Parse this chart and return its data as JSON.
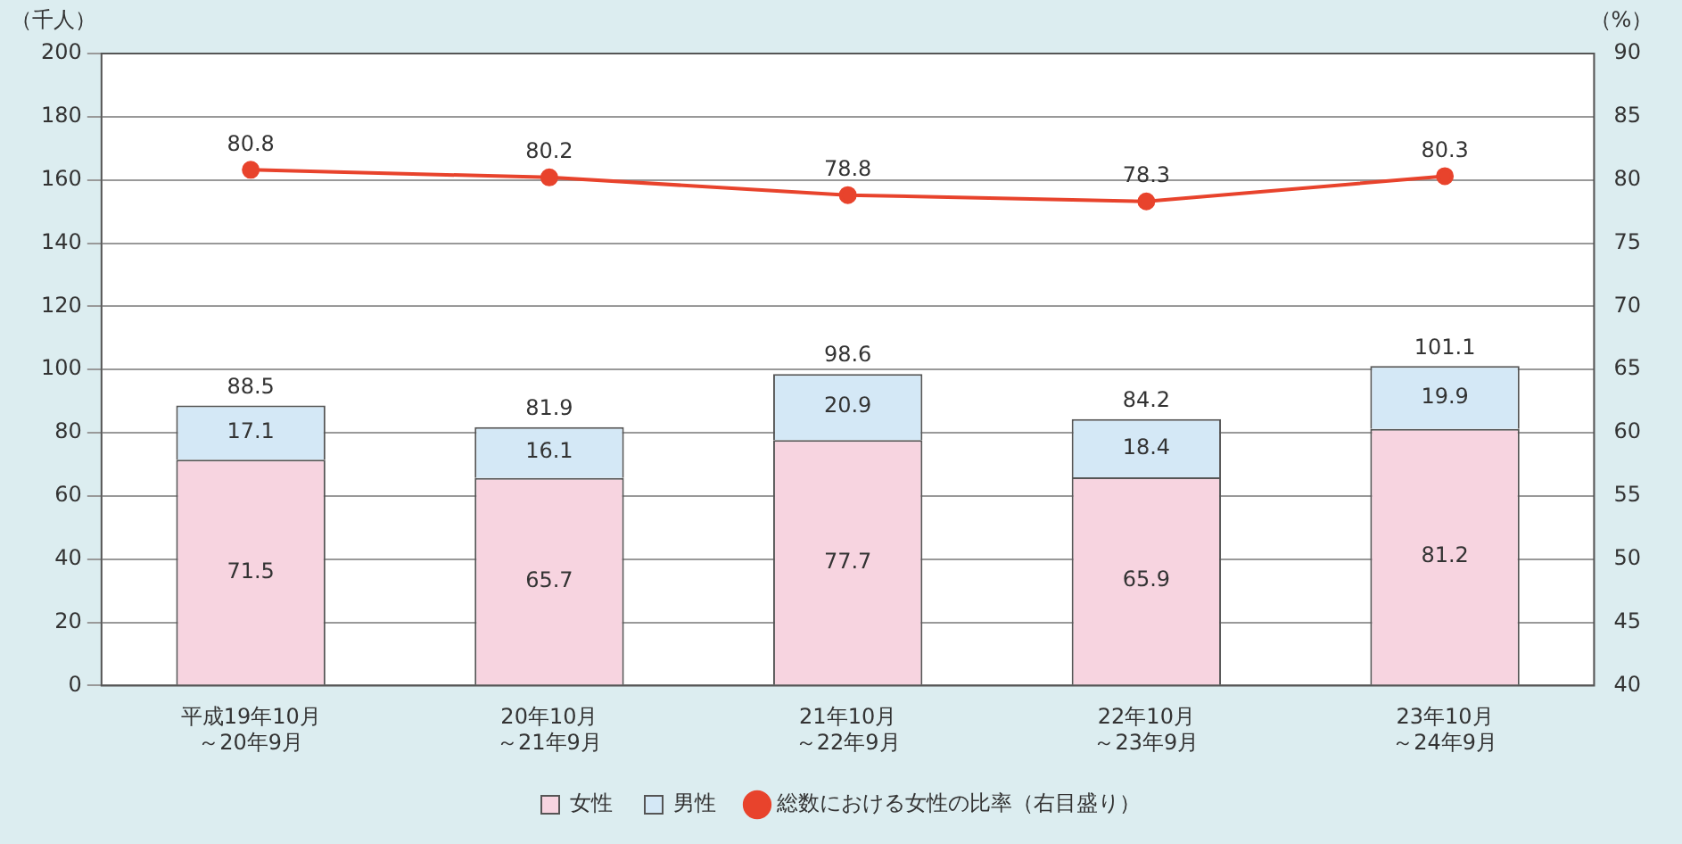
{
  "chart_data": {
    "type": "bar",
    "stacked": true,
    "categories": [
      "平成19年10月～20年9月",
      "20年10月～21年9月",
      "21年10月～22年9月",
      "22年10月～23年9月",
      "23年10月～24年9月"
    ],
    "series": [
      {
        "name": "女性",
        "color": "#f7d4e0",
        "values": [
          71.5,
          65.7,
          77.7,
          65.9,
          81.2
        ]
      },
      {
        "name": "男性",
        "color": "#d4e8f6",
        "values": [
          17.1,
          16.1,
          20.9,
          18.4,
          19.9
        ]
      },
      {
        "name": "総数における女性の比率（右目盛り）",
        "type": "line",
        "axis": "y2",
        "color": "#e8432c",
        "values": [
          80.8,
          80.2,
          78.8,
          78.3,
          80.3
        ]
      }
    ],
    "totals": [
      "88.5",
      "81.9",
      "98.6",
      "84.2",
      "101.1"
    ],
    "ylabel": "（千人）",
    "y2label": "（%）",
    "ylim": [
      0,
      200
    ],
    "yticks": [
      0,
      20,
      40,
      60,
      80,
      100,
      120,
      140,
      160,
      180,
      200
    ],
    "y2lim": [
      40,
      90
    ],
    "y2ticks": [
      40,
      45,
      50,
      55,
      60,
      65,
      70,
      75,
      80,
      85,
      90
    ],
    "grid": "y",
    "legend": "bottom",
    "marker": "circle",
    "data_labels": true
  }
}
